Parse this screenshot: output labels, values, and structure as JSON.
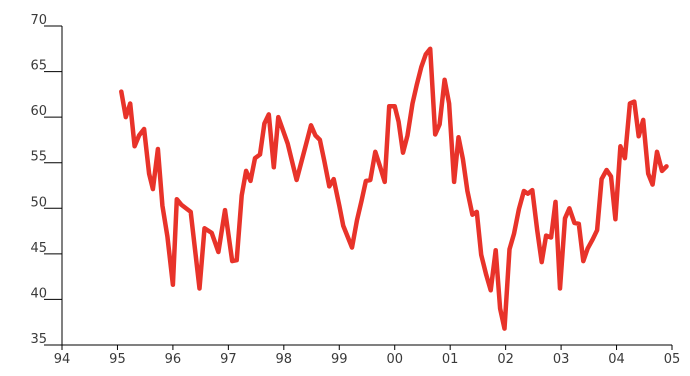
{
  "chart_data": {
    "type": "line",
    "title": "",
    "xlabel": "",
    "ylabel": "",
    "xlim": [
      1994,
      2005
    ],
    "ylim": [
      35,
      70
    ],
    "grid": false,
    "x_ticks": [
      {
        "value": 1994,
        "label": "94"
      },
      {
        "value": 1995,
        "label": "95"
      },
      {
        "value": 1996,
        "label": "96"
      },
      {
        "value": 1997,
        "label": "97"
      },
      {
        "value": 1998,
        "label": "98"
      },
      {
        "value": 1999,
        "label": "99"
      },
      {
        "value": 2000,
        "label": "00"
      },
      {
        "value": 2001,
        "label": "01"
      },
      {
        "value": 2002,
        "label": "02"
      },
      {
        "value": 2003,
        "label": "03"
      },
      {
        "value": 2004,
        "label": "04"
      },
      {
        "value": 2005,
        "label": "05"
      }
    ],
    "y_ticks": [
      {
        "value": 35,
        "label": "35"
      },
      {
        "value": 40,
        "label": "40"
      },
      {
        "value": 45,
        "label": "45"
      },
      {
        "value": 50,
        "label": "50"
      },
      {
        "value": 55,
        "label": "55"
      },
      {
        "value": 60,
        "label": "60"
      },
      {
        "value": 65,
        "label": "65"
      },
      {
        "value": 70,
        "label": "70"
      }
    ],
    "series": [
      {
        "color": "#e8332a",
        "x": [
          1995.07,
          1995.15,
          1995.23,
          1995.31,
          1995.39,
          1995.48,
          1995.57,
          1995.64,
          1995.73,
          1995.81,
          1995.9,
          1996.0,
          1996.07,
          1996.15,
          1996.32,
          1996.48,
          1996.57,
          1996.7,
          1996.82,
          1996.94,
          1997.07,
          1997.15,
          1997.24,
          1997.32,
          1997.4,
          1997.48,
          1997.57,
          1997.65,
          1997.73,
          1997.82,
          1997.9,
          1998.07,
          1998.23,
          1998.4,
          1998.49,
          1998.57,
          1998.65,
          1998.73,
          1998.82,
          1998.9,
          1999.0,
          1999.07,
          1999.23,
          1999.32,
          1999.4,
          1999.48,
          1999.56,
          1999.65,
          1999.74,
          1999.82,
          1999.9,
          2000.0,
          2000.07,
          2000.15,
          2000.23,
          2000.32,
          2000.4,
          2000.48,
          2000.56,
          2000.64,
          2000.73,
          2000.81,
          2000.9,
          2000.98,
          2001.07,
          2001.15,
          2001.23,
          2001.31,
          2001.4,
          2001.48,
          2001.56,
          2001.65,
          2001.73,
          2001.82,
          2001.9,
          2001.98,
          2002.07,
          2002.15,
          2002.24,
          2002.33,
          2002.4,
          2002.48,
          2002.57,
          2002.65,
          2002.73,
          2002.82,
          2002.9,
          2002.98,
          2003.07,
          2003.15,
          2003.24,
          2003.32,
          2003.4,
          2003.48,
          2003.57,
          2003.65,
          2003.73,
          2003.82,
          2003.9,
          2003.98,
          2004.07,
          2004.15,
          2004.24,
          2004.32,
          2004.4,
          2004.48,
          2004.57,
          2004.65,
          2004.73,
          2004.82,
          2004.9
        ],
        "values": [
          62.8,
          60.0,
          61.5,
          56.8,
          58.0,
          58.7,
          53.8,
          52.1,
          56.5,
          50.3,
          46.9,
          41.6,
          51.0,
          50.4,
          49.6,
          41.2,
          47.8,
          47.3,
          45.2,
          49.8,
          44.2,
          44.3,
          51.4,
          54.1,
          53.0,
          55.5,
          55.9,
          59.3,
          60.3,
          54.5,
          60.0,
          57.1,
          53.1,
          57.0,
          59.1,
          58.0,
          57.5,
          55.2,
          52.4,
          53.2,
          50.3,
          48.1,
          45.7,
          48.7,
          50.8,
          53.0,
          53.1,
          56.2,
          54.5,
          52.9,
          61.2,
          61.2,
          59.5,
          56.1,
          58.0,
          61.5,
          63.6,
          65.5,
          66.9,
          67.5,
          58.1,
          59.2,
          64.1,
          61.5,
          52.9,
          57.8,
          55.4,
          51.9,
          49.3,
          49.6,
          44.9,
          42.7,
          41.0,
          45.4,
          39.0,
          36.8,
          45.5,
          47.2,
          49.9,
          51.9,
          51.6,
          52.0,
          47.6,
          44.1,
          47.0,
          46.8,
          50.7,
          41.2,
          48.9,
          50.0,
          48.4,
          48.3,
          44.2,
          45.6,
          46.6,
          47.6,
          53.2,
          54.2,
          53.5,
          48.8,
          56.8,
          55.5,
          61.5,
          61.7,
          57.9,
          59.7,
          53.8,
          52.6,
          56.2,
          54.1,
          54.6
        ]
      }
    ]
  }
}
